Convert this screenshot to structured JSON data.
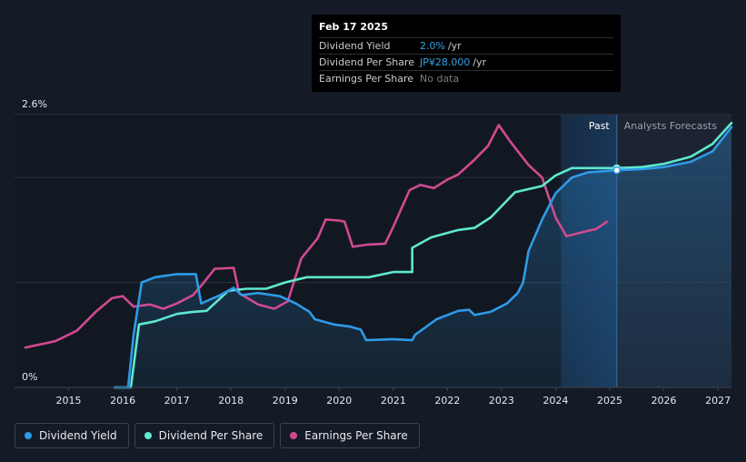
{
  "tooltip": {
    "date": "Feb 17 2025",
    "rows": [
      {
        "name": "Dividend Yield",
        "value": "2.0%",
        "unit": "/yr"
      },
      {
        "name": "Dividend Per Share",
        "value": "JP¥28.000",
        "unit": "/yr"
      },
      {
        "name": "Earnings Per Share",
        "value": "No data",
        "unit": ""
      }
    ]
  },
  "sections": {
    "past": "Past",
    "forecast": "Analysts Forecasts"
  },
  "legend": [
    {
      "label": "Dividend Yield",
      "color": "#2f9ae8"
    },
    {
      "label": "Dividend Per Share",
      "color": "#5ee8d0"
    },
    {
      "label": "Earnings Per Share",
      "color": "#d04a92"
    }
  ],
  "chart_data": {
    "type": "line",
    "y_axis_labels": [
      "2.6%",
      "0%"
    ],
    "ylim": [
      0,
      2.6
    ],
    "xlim": [
      2014.0,
      2027.25
    ],
    "x_ticks": [
      "2015",
      "2016",
      "2017",
      "2018",
      "2019",
      "2020",
      "2021",
      "2022",
      "2023",
      "2024",
      "2025",
      "2026",
      "2027"
    ],
    "past_end": 2025.13,
    "forecast_shade_start": 2024.1,
    "grid": true,
    "series": [
      {
        "name": "Dividend Yield",
        "color": "#2f9ae8",
        "unit": "%",
        "points": [
          [
            2015.85,
            0.0
          ],
          [
            2016.1,
            0.0
          ],
          [
            2016.2,
            0.5
          ],
          [
            2016.35,
            1.0
          ],
          [
            2016.6,
            1.05
          ],
          [
            2017.0,
            1.08
          ],
          [
            2017.35,
            1.08
          ],
          [
            2017.45,
            0.8
          ],
          [
            2017.8,
            0.88
          ],
          [
            2018.05,
            0.95
          ],
          [
            2018.2,
            0.88
          ],
          [
            2018.5,
            0.9
          ],
          [
            2018.9,
            0.87
          ],
          [
            2019.2,
            0.8
          ],
          [
            2019.45,
            0.72
          ],
          [
            2019.55,
            0.65
          ],
          [
            2019.9,
            0.6
          ],
          [
            2020.2,
            0.58
          ],
          [
            2020.4,
            0.55
          ],
          [
            2020.5,
            0.45
          ],
          [
            2021.0,
            0.46
          ],
          [
            2021.35,
            0.45
          ],
          [
            2021.4,
            0.5
          ],
          [
            2021.8,
            0.65
          ],
          [
            2022.2,
            0.73
          ],
          [
            2022.4,
            0.74
          ],
          [
            2022.5,
            0.69
          ],
          [
            2022.8,
            0.72
          ],
          [
            2023.1,
            0.8
          ],
          [
            2023.3,
            0.9
          ],
          [
            2023.4,
            1.0
          ],
          [
            2023.5,
            1.3
          ],
          [
            2023.75,
            1.6
          ],
          [
            2024.0,
            1.85
          ],
          [
            2024.3,
            2.0
          ],
          [
            2024.6,
            2.05
          ],
          [
            2025.13,
            2.07
          ],
          [
            2025.6,
            2.08
          ],
          [
            2026.0,
            2.1
          ],
          [
            2026.5,
            2.15
          ],
          [
            2026.9,
            2.25
          ],
          [
            2027.25,
            2.48
          ]
        ]
      },
      {
        "name": "Dividend Per Share",
        "color": "#5ee8d0",
        "unit": "JP¥",
        "points": [
          [
            2015.85,
            0.0
          ],
          [
            2016.15,
            0.0
          ],
          [
            2016.3,
            0.6
          ],
          [
            2016.6,
            0.63
          ],
          [
            2017.0,
            0.7
          ],
          [
            2017.3,
            0.72
          ],
          [
            2017.55,
            0.73
          ],
          [
            2017.95,
            0.92
          ],
          [
            2018.3,
            0.94
          ],
          [
            2018.65,
            0.94
          ],
          [
            2019.0,
            1.0
          ],
          [
            2019.4,
            1.05
          ],
          [
            2020.0,
            1.05
          ],
          [
            2020.55,
            1.05
          ],
          [
            2021.0,
            1.1
          ],
          [
            2021.35,
            1.1
          ],
          [
            2021.35,
            1.33
          ],
          [
            2021.7,
            1.43
          ],
          [
            2022.2,
            1.5
          ],
          [
            2022.5,
            1.52
          ],
          [
            2022.8,
            1.62
          ],
          [
            2023.25,
            1.86
          ],
          [
            2023.75,
            1.92
          ],
          [
            2024.0,
            2.02
          ],
          [
            2024.3,
            2.09
          ],
          [
            2025.13,
            2.09
          ],
          [
            2025.6,
            2.1
          ],
          [
            2026.0,
            2.13
          ],
          [
            2026.5,
            2.2
          ],
          [
            2026.9,
            2.32
          ],
          [
            2027.25,
            2.52
          ]
        ]
      },
      {
        "name": "Earnings Per Share",
        "color": "#d04a92",
        "unit": "JP¥",
        "points": [
          [
            2014.2,
            0.38
          ],
          [
            2014.75,
            0.44
          ],
          [
            2015.15,
            0.54
          ],
          [
            2015.5,
            0.72
          ],
          [
            2015.8,
            0.85
          ],
          [
            2016.0,
            0.87
          ],
          [
            2016.2,
            0.77
          ],
          [
            2016.5,
            0.79
          ],
          [
            2016.75,
            0.75
          ],
          [
            2017.0,
            0.8
          ],
          [
            2017.3,
            0.88
          ],
          [
            2017.5,
            1.0
          ],
          [
            2017.7,
            1.13
          ],
          [
            2018.05,
            1.14
          ],
          [
            2018.15,
            0.9
          ],
          [
            2018.5,
            0.79
          ],
          [
            2018.8,
            0.75
          ],
          [
            2019.05,
            0.82
          ],
          [
            2019.3,
            1.23
          ],
          [
            2019.6,
            1.42
          ],
          [
            2019.75,
            1.6
          ],
          [
            2020.0,
            1.59
          ],
          [
            2020.1,
            1.58
          ],
          [
            2020.25,
            1.34
          ],
          [
            2020.5,
            1.36
          ],
          [
            2020.85,
            1.37
          ],
          [
            2021.0,
            1.53
          ],
          [
            2021.3,
            1.88
          ],
          [
            2021.5,
            1.93
          ],
          [
            2021.75,
            1.9
          ],
          [
            2022.0,
            1.98
          ],
          [
            2022.2,
            2.03
          ],
          [
            2022.5,
            2.17
          ],
          [
            2022.75,
            2.3
          ],
          [
            2022.95,
            2.5
          ],
          [
            2023.15,
            2.35
          ],
          [
            2023.5,
            2.12
          ],
          [
            2023.75,
            2.0
          ],
          [
            2024.0,
            1.62
          ],
          [
            2024.2,
            1.44
          ],
          [
            2024.5,
            1.48
          ],
          [
            2024.75,
            1.51
          ],
          [
            2024.95,
            1.58
          ]
        ]
      }
    ]
  }
}
